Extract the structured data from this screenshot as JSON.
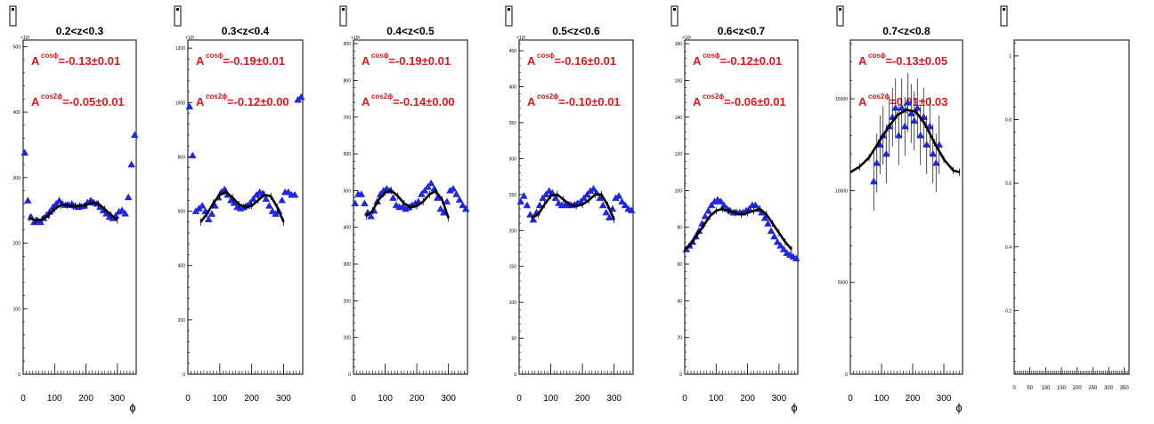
{
  "chart_data": [
    {
      "type": "scatter",
      "title": "0.2<z<0.3",
      "xlabel": "ϕ",
      "ylabel": "",
      "xlim": [
        0,
        360
      ],
      "ylim": [
        0,
        510
      ],
      "y_exponent": "×10³",
      "x_ticks": [
        0,
        100,
        200,
        300
      ],
      "y_ticks": [
        0,
        100,
        200,
        300,
        400,
        500
      ],
      "annotations": [
        {
          "base": "A",
          "sup": "cosϕ",
          "text": "=-0.13±0.01"
        },
        {
          "base": "A",
          "sup": "cos2ϕ",
          "text": "=-0.05±0.01"
        }
      ],
      "series": [
        {
          "style": "blue-triangles",
          "x": [
            5,
            15,
            25,
            35,
            45,
            55,
            65,
            75,
            85,
            95,
            105,
            115,
            125,
            135,
            145,
            155,
            165,
            175,
            185,
            195,
            205,
            215,
            225,
            235,
            245,
            255,
            265,
            275,
            285,
            295,
            305,
            315,
            325,
            335,
            345,
            355
          ],
          "y": [
            338,
            265,
            240,
            232,
            235,
            232,
            238,
            243,
            248,
            255,
            260,
            265,
            260,
            258,
            258,
            260,
            257,
            255,
            256,
            257,
            262,
            265,
            262,
            260,
            255,
            250,
            245,
            240,
            238,
            242,
            248,
            250,
            245,
            270,
            320,
            365
          ]
        },
        {
          "style": "black-fit",
          "x": [
            20,
            40,
            60,
            80,
            100,
            120,
            140,
            160,
            180,
            200,
            220,
            240,
            260,
            280,
            300
          ],
          "y": [
            238,
            235,
            236,
            242,
            252,
            258,
            258,
            256,
            257,
            258,
            262,
            260,
            252,
            243,
            235
          ]
        }
      ]
    },
    {
      "type": "scatter",
      "title": "0.3<z<0.4",
      "xlabel": "",
      "ylabel": "",
      "xlim": [
        0,
        360
      ],
      "ylim": [
        0,
        1230
      ],
      "y_exponent": "×10³",
      "x_ticks": [
        0,
        100,
        200,
        300
      ],
      "y_ticks": [
        0,
        200,
        400,
        600,
        800,
        1000,
        1200
      ],
      "annotations": [
        {
          "base": "A",
          "sup": "cosϕ",
          "text": "=-0.19±0.01"
        },
        {
          "base": "A",
          "sup": "cos2ϕ",
          "text": "=-0.12±0.00"
        }
      ],
      "series": [
        {
          "style": "blue-triangles",
          "x": [
            5,
            15,
            25,
            35,
            45,
            55,
            65,
            75,
            85,
            95,
            105,
            115,
            125,
            135,
            145,
            155,
            165,
            175,
            185,
            195,
            205,
            215,
            225,
            235,
            245,
            255,
            265,
            275,
            285,
            295,
            305,
            315,
            325,
            335,
            345,
            355
          ],
          "y": [
            985,
            805,
            600,
            610,
            620,
            600,
            570,
            590,
            620,
            650,
            670,
            680,
            660,
            640,
            630,
            615,
            610,
            615,
            620,
            630,
            645,
            660,
            670,
            665,
            645,
            620,
            600,
            590,
            600,
            640,
            670,
            670,
            660,
            660,
            1010,
            1020
          ]
        },
        {
          "style": "black-fit",
          "x": [
            40,
            60,
            80,
            100,
            120,
            140,
            160,
            180,
            200,
            220,
            240,
            260,
            280,
            300
          ],
          "y": [
            560,
            590,
            630,
            660,
            670,
            650,
            625,
            615,
            620,
            640,
            660,
            655,
            615,
            560
          ]
        }
      ]
    },
    {
      "type": "scatter",
      "title": "0.4<z<0.5",
      "xlabel": "",
      "ylabel": "",
      "xlim": [
        0,
        360
      ],
      "ylim": [
        0,
        910
      ],
      "y_exponent": "×10³",
      "x_ticks": [
        0,
        100,
        200,
        300
      ],
      "y_ticks": [
        0,
        100,
        200,
        300,
        400,
        500,
        600,
        700,
        800,
        900
      ],
      "annotations": [
        {
          "base": "A",
          "sup": "cosϕ",
          "text": "=-0.19±0.01"
        },
        {
          "base": "A",
          "sup": "cos2ϕ",
          "text": "=-0.14±0.00"
        }
      ],
      "series": [
        {
          "style": "blue-triangles",
          "x": [
            5,
            15,
            25,
            35,
            45,
            55,
            65,
            75,
            85,
            95,
            105,
            115,
            125,
            135,
            145,
            155,
            165,
            175,
            185,
            195,
            205,
            215,
            225,
            235,
            245,
            255,
            265,
            275,
            285,
            295,
            305,
            315,
            325,
            335,
            345,
            355
          ],
          "y": [
            465,
            490,
            490,
            465,
            440,
            430,
            445,
            470,
            490,
            500,
            505,
            500,
            480,
            460,
            455,
            455,
            450,
            455,
            460,
            465,
            470,
            490,
            500,
            510,
            520,
            505,
            480,
            450,
            440,
            470,
            500,
            505,
            490,
            475,
            460,
            450
          ]
        },
        {
          "style": "black-fit",
          "x": [
            40,
            60,
            80,
            100,
            120,
            140,
            160,
            180,
            200,
            220,
            240,
            260,
            280,
            300
          ],
          "y": [
            430,
            445,
            475,
            495,
            500,
            485,
            465,
            455,
            458,
            470,
            490,
            498,
            475,
            425
          ]
        }
      ]
    },
    {
      "type": "scatter",
      "title": "0.5<z<0.6",
      "xlabel": "",
      "ylabel": "",
      "xlim": [
        0,
        360
      ],
      "ylim": [
        0,
        465
      ],
      "y_exponent": "×10³",
      "x_ticks": [
        0,
        100,
        200,
        300
      ],
      "y_ticks": [
        0,
        50,
        100,
        150,
        200,
        250,
        300,
        350,
        400,
        450
      ],
      "annotations": [
        {
          "base": "A",
          "sup": "cosϕ",
          "text": "=-0.16±0.01"
        },
        {
          "base": "A",
          "sup": "cos2ϕ",
          "text": "=-0.10±0.01"
        }
      ],
      "series": [
        {
          "style": "blue-triangles",
          "x": [
            5,
            15,
            25,
            35,
            45,
            55,
            65,
            75,
            85,
            95,
            105,
            115,
            125,
            135,
            145,
            155,
            165,
            175,
            185,
            195,
            205,
            215,
            225,
            235,
            245,
            255,
            265,
            275,
            285,
            295,
            305,
            315,
            325,
            335,
            345,
            355
          ],
          "y": [
            240,
            248,
            235,
            222,
            215,
            225,
            235,
            245,
            250,
            255,
            252,
            245,
            238,
            235,
            235,
            236,
            235,
            236,
            238,
            240,
            245,
            250,
            255,
            258,
            252,
            245,
            235,
            225,
            218,
            230,
            245,
            248,
            240,
            235,
            230,
            228
          ]
        },
        {
          "style": "black-fit",
          "x": [
            40,
            60,
            80,
            100,
            120,
            140,
            160,
            180,
            200,
            220,
            240,
            260,
            280,
            300
          ],
          "y": [
            218,
            222,
            236,
            248,
            250,
            243,
            236,
            234,
            236,
            242,
            250,
            250,
            235,
            215
          ]
        }
      ]
    },
    {
      "type": "scatter",
      "title": "0.6<z<0.7",
      "xlabel": "ϕ",
      "ylabel": "",
      "xlim": [
        0,
        360
      ],
      "ylim": [
        0,
        182
      ],
      "y_exponent": "×10³",
      "x_ticks": [
        0,
        100,
        200,
        300
      ],
      "y_ticks": [
        0,
        20,
        40,
        60,
        80,
        100,
        120,
        140,
        160,
        180
      ],
      "annotations": [
        {
          "base": "A",
          "sup": "cosϕ",
          "text": "=-0.12±0.01"
        },
        {
          "base": "A",
          "sup": "cos2ϕ",
          "text": "=-0.06±0.01"
        }
      ],
      "series": [
        {
          "style": "blue-triangles",
          "x": [
            5,
            15,
            25,
            35,
            45,
            55,
            65,
            75,
            85,
            95,
            105,
            115,
            125,
            135,
            145,
            155,
            165,
            175,
            185,
            195,
            205,
            215,
            225,
            235,
            245,
            255,
            265,
            275,
            285,
            295,
            305,
            315,
            325,
            335,
            345,
            355
          ],
          "y": [
            68,
            70,
            72,
            75,
            78,
            82,
            86,
            89,
            92,
            94,
            95,
            94,
            92,
            90,
            89,
            88,
            88,
            88,
            88,
            89,
            90,
            92,
            92,
            90,
            88,
            85,
            82,
            78,
            75,
            72,
            70,
            68,
            66,
            65,
            64,
            63
          ]
        },
        {
          "style": "black-fit",
          "x": [
            0,
            20,
            40,
            60,
            80,
            100,
            120,
            140,
            160,
            180,
            200,
            220,
            240,
            260,
            280,
            300,
            320,
            340
          ],
          "y": [
            68,
            71,
            76,
            81,
            86,
            89,
            90,
            89,
            88,
            87,
            88,
            89,
            90,
            87,
            82,
            77,
            72,
            68
          ]
        }
      ]
    },
    {
      "type": "scatter",
      "title": "0.7<z<0.8",
      "xlabel": "ϕ",
      "ylabel": "",
      "xlim": [
        0,
        360
      ],
      "ylim": [
        0,
        18200
      ],
      "y_exponent": "",
      "x_ticks": [
        0,
        100,
        200,
        300
      ],
      "y_ticks": [
        0,
        5000,
        10000,
        15000
      ],
      "annotations": [
        {
          "base": "A",
          "sup": "cosϕ",
          "text": "=-0.13±0.05"
        },
        {
          "base": "A",
          "sup": "cos2ϕ",
          "text": "=0.01±0.03"
        }
      ],
      "series": [
        {
          "style": "blue-triangles",
          "x": [
            75,
            85,
            95,
            105,
            115,
            125,
            135,
            145,
            155,
            165,
            175,
            185,
            195,
            205,
            215,
            225,
            235,
            245,
            255,
            265,
            275,
            285
          ],
          "y": [
            10500,
            11500,
            12500,
            13000,
            12000,
            13500,
            14000,
            14500,
            13000,
            14500,
            13500,
            14800,
            14200,
            13800,
            14500,
            13000,
            14000,
            12500,
            13500,
            12000,
            11500,
            12500
          ]
        },
        {
          "style": "black-fit",
          "x": [
            0,
            30,
            60,
            90,
            120,
            150,
            180,
            210,
            240,
            270,
            300,
            330,
            350
          ],
          "y": [
            11000,
            11300,
            11800,
            12600,
            13400,
            14100,
            14400,
            14300,
            13600,
            12600,
            11700,
            11100,
            11000
          ]
        }
      ]
    },
    {
      "type": "bar",
      "title": "",
      "xlabel": "",
      "ylabel": "",
      "xlim": [
        0,
        365
      ],
      "ylim": [
        0,
        1.05
      ],
      "x_ticks": [
        0,
        50,
        100,
        150,
        200,
        250,
        300,
        350
      ],
      "y_ticks": [
        0.2,
        0.4,
        0.6,
        0.8,
        1
      ],
      "annotations": [],
      "series": []
    }
  ]
}
